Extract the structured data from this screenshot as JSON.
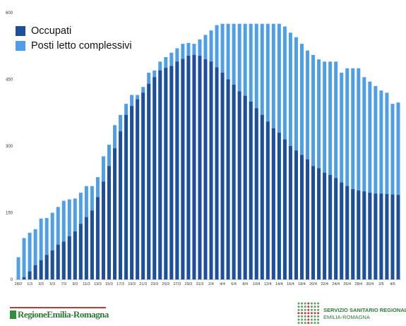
{
  "colors": {
    "occupati": "#1f4e9b",
    "posti": "#4f9fe8",
    "axis_text": "#333333"
  },
  "legend": {
    "occupati_label": "Occupati",
    "posti_label": "Posti letto complessivi"
  },
  "footer": {
    "left_logo_text": "RegioneEmilia-Romagna",
    "right_line1": "SERVIZIO SANITARIO REGIONALE",
    "right_line2": "EMILIA-ROMAGNA"
  },
  "chart_data": {
    "type": "bar",
    "title": "",
    "xlabel": "",
    "ylabel": "",
    "ylim": [
      0,
      600
    ],
    "yticks": [
      0,
      150,
      300,
      450,
      600
    ],
    "categories": [
      "28/2",
      "29/2",
      "1/3",
      "2/3",
      "3/3",
      "4/3",
      "5/3",
      "6/3",
      "7/3",
      "8/3",
      "9/3",
      "10/3",
      "11/3",
      "12/3",
      "13/3",
      "14/3",
      "15/3",
      "16/3",
      "17/3",
      "18/3",
      "19/3",
      "20/3",
      "21/3",
      "22/3",
      "23/3",
      "24/3",
      "25/3",
      "26/3",
      "27/3",
      "28/3",
      "29/3",
      "30/3",
      "31/3",
      "1/4",
      "2/4",
      "3/4",
      "4/4",
      "5/4",
      "6/4",
      "7/4",
      "8/4",
      "9/4",
      "10/4",
      "11/4",
      "12/4",
      "13/4",
      "14/4",
      "15/4",
      "16/4",
      "17/4",
      "18/4",
      "19/4",
      "20/4",
      "21/4",
      "22/4",
      "23/4",
      "24/4",
      "25/4",
      "26/4",
      "27/4",
      "28/4",
      "29/4",
      "30/4",
      "1/5",
      "2/5",
      "3/5",
      "4/5",
      "5/5"
    ],
    "xtick_labels": [
      "28/2",
      "1/3",
      "3/3",
      "5/3",
      "7/3",
      "9/3",
      "11/3",
      "13/3",
      "15/3",
      "17/3",
      "19/3",
      "21/3",
      "23/3",
      "25/3",
      "27/3",
      "29/3",
      "31/3",
      "2/4",
      "4/4",
      "6/4",
      "8/4",
      "10/4",
      "12/4",
      "14/4",
      "16/4",
      "18/4",
      "20/4",
      "22/4",
      "24/4",
      "26/4",
      "28/4",
      "30/4",
      "2/5",
      "4/5"
    ],
    "series": [
      {
        "name": "Posti letto complessivi",
        "values": [
          50,
          93,
          105,
          113,
          137,
          138,
          150,
          163,
          177,
          180,
          182,
          195,
          210,
          210,
          230,
          277,
          303,
          347,
          370,
          395,
          415,
          415,
          433,
          465,
          470,
          490,
          500,
          510,
          520,
          530,
          532,
          530,
          540,
          550,
          560,
          572,
          575,
          575,
          575,
          575,
          575,
          575,
          575,
          575,
          575,
          575,
          575,
          569,
          555,
          545,
          530,
          515,
          505,
          495,
          490,
          490,
          490,
          465,
          475,
          475,
          475,
          455,
          445,
          435,
          425,
          420,
          395,
          398
        ]
      },
      {
        "name": "Occupati",
        "values": [
          0,
          5,
          18,
          32,
          43,
          55,
          65,
          78,
          85,
          97,
          108,
          125,
          140,
          155,
          185,
          220,
          255,
          295,
          333,
          370,
          390,
          405,
          420,
          440,
          455,
          470,
          476,
          480,
          490,
          496,
          503,
          505,
          503,
          495,
          490,
          477,
          465,
          450,
          438,
          423,
          413,
          400,
          385,
          370,
          355,
          340,
          330,
          315,
          300,
          290,
          280,
          270,
          255,
          250,
          240,
          235,
          228,
          218,
          210,
          203,
          200,
          198,
          195,
          193,
          193,
          192,
          191,
          190
        ]
      }
    ]
  }
}
